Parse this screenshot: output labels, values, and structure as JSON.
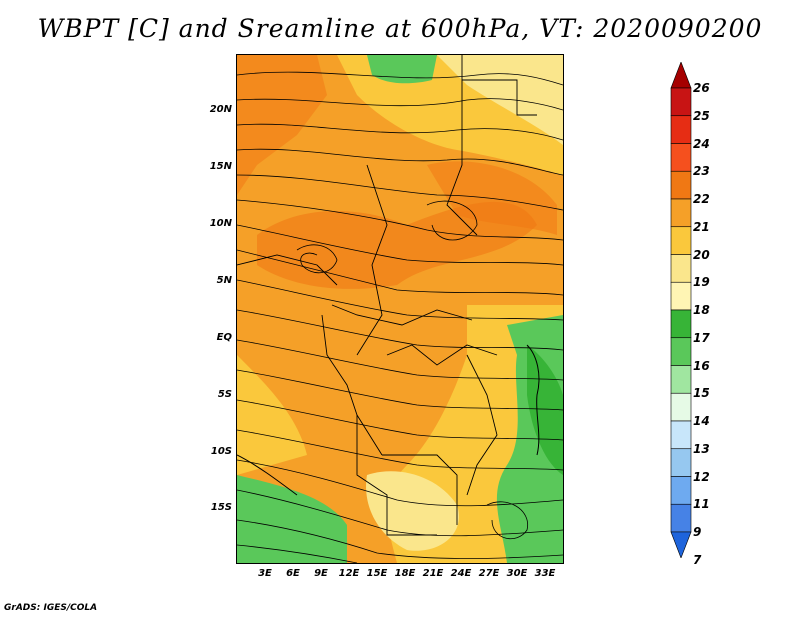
{
  "title": "WBPT [C] and Sreamline at 600hPa, VT: 2020090200",
  "credit": "GrADS: IGES/COLA",
  "map": {
    "lat_labels": [
      "20N",
      "15N",
      "10N",
      "5N",
      "EQ",
      "5S",
      "10S",
      "15S"
    ],
    "lat_values": [
      20,
      15,
      10,
      5,
      0,
      -5,
      -10,
      -15
    ],
    "lon_labels": [
      "3E",
      "6E",
      "9E",
      "12E",
      "15E",
      "18E",
      "21E",
      "24E",
      "27E",
      "30E",
      "33E"
    ],
    "lon_values": [
      3,
      6,
      9,
      12,
      15,
      18,
      21,
      24,
      27,
      30,
      33
    ],
    "lon_range": [
      0.5,
      35
    ],
    "lat_range": [
      -20,
      24.5
    ]
  },
  "colorbar": {
    "labels": [
      "26",
      "25",
      "24",
      "23",
      "22",
      "21",
      "20",
      "19",
      "18",
      "17",
      "16",
      "15",
      "14",
      "13",
      "12",
      "11",
      "9",
      "7"
    ],
    "colors": [
      "#a50000",
      "#c81414",
      "#e62d14",
      "#f5501e",
      "#f07814",
      "#f5a028",
      "#fac83c",
      "#fae68c",
      "#fff5b4",
      "#37b437",
      "#5ac85a",
      "#a0e6a0",
      "#e6fae6",
      "#c8e6fa",
      "#96c8f0",
      "#6eaaf0",
      "#4682e6",
      "#1e64dc"
    ]
  }
}
